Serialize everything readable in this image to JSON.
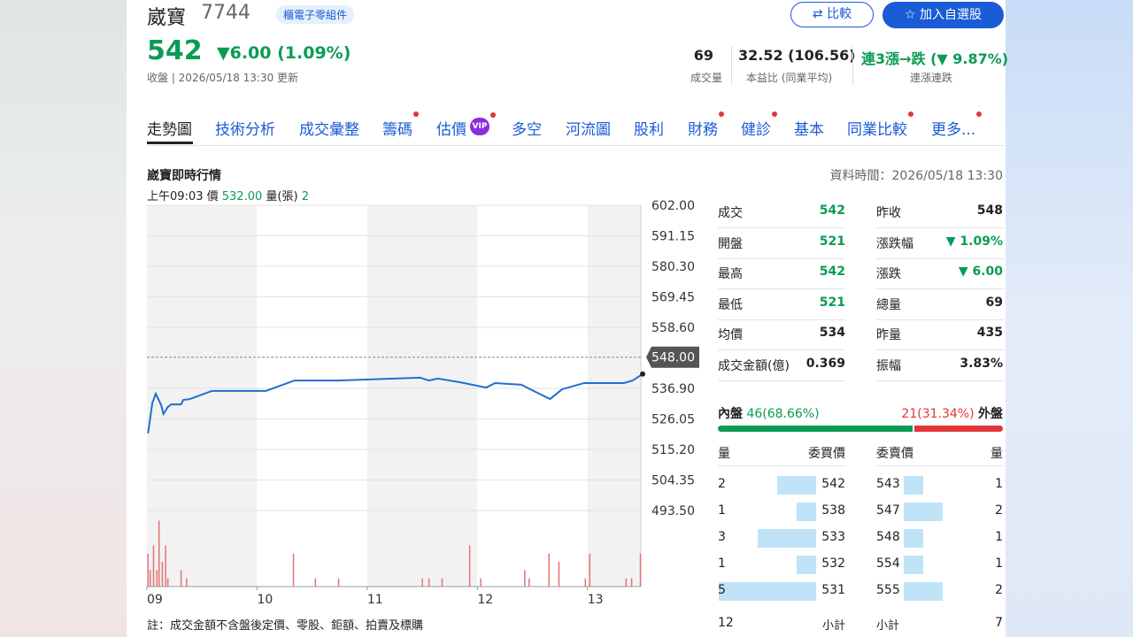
{
  "header": {
    "name": "崴寶",
    "code": "7744",
    "industry": "櫃電子零組件",
    "price": "542",
    "change": "▼6.00 (1.09%)",
    "updated": "收盤 | 2026/05/18 13:30 更新",
    "compare": "比較",
    "watchlist": "加入自選股",
    "stats": [
      {
        "value": "69",
        "label": "成交量"
      },
      {
        "value": "32.52 (106.56)",
        "label": "本益比 (同業平均)"
      },
      {
        "value": "連3漲→跌 (▼ 9.87%)",
        "label": "連漲連跌"
      }
    ]
  },
  "tabs": [
    "走勢圖",
    "技術分析",
    "成交彙整",
    "籌碼",
    "估價",
    "多空",
    "河流圖",
    "股利",
    "財務",
    "健診",
    "基本",
    "同業比較",
    "更多..."
  ],
  "vip": "VIP",
  "section": {
    "title": "崴寶即時行情",
    "time": "資料時間：2026/05/18 13:30"
  },
  "hover": {
    "time": "上午09:03",
    "price_label": "價",
    "price": "532.00",
    "volume_label": "量(張)",
    "volume": "2"
  },
  "chart_data": {
    "type": "line",
    "xlim": [
      9,
      13.5
    ],
    "xticks": [
      {
        "value": 9,
        "label": "09"
      },
      {
        "value": 10,
        "label": "10"
      },
      {
        "value": 11,
        "label": "11"
      },
      {
        "value": 12,
        "label": "12"
      },
      {
        "value": 13,
        "label": "13"
      }
    ],
    "ylim": [
      493.5,
      602
    ],
    "yticks": [
      {
        "value": 602,
        "label": "602.00"
      },
      {
        "value": 591.15,
        "label": "591.15"
      },
      {
        "value": 580.3,
        "label": "580.30"
      },
      {
        "value": 569.45,
        "label": "569.45"
      },
      {
        "value": 558.6,
        "label": "558.60"
      },
      {
        "value": 536.9,
        "label": "536.90"
      },
      {
        "value": 526.05,
        "label": "526.05"
      },
      {
        "value": 515.2,
        "label": "515.20"
      },
      {
        "value": 504.35,
        "label": "504.35"
      },
      {
        "value": 493.5,
        "label": "493.50"
      }
    ],
    "prev_close": {
      "value": 548,
      "label": "548.00"
    },
    "price": {
      "color": "#1f6fd0",
      "x": [
        9.01,
        9.05,
        9.06,
        9.08,
        9.1,
        9.13,
        9.15,
        9.19,
        9.22,
        9.31,
        9.33,
        9.39,
        9.59,
        10.08,
        10.34,
        10.72,
        11.48,
        11.56,
        11.64,
        11.84,
        12.08,
        12.16,
        12.4,
        12.48,
        12.66,
        12.77,
        12.97,
        13.33,
        13.41,
        13.5
      ],
      "values": [
        520.9,
        532,
        532.8,
        535,
        533.4,
        530.9,
        527.8,
        530.3,
        531.2,
        531.2,
        532.8,
        533.1,
        536,
        536,
        539.7,
        539.7,
        540.7,
        539.7,
        540.4,
        539.1,
        537.2,
        538.8,
        538.2,
        536.6,
        533.1,
        536.6,
        538.8,
        538.8,
        539.7,
        542
      ]
    },
    "volume": {
      "color": "#e57373",
      "x": [
        9.01,
        9.03,
        9.06,
        9.09,
        9.11,
        9.14,
        9.17,
        9.19,
        9.31,
        9.36,
        10.33,
        10.53,
        10.74,
        11.5,
        11.56,
        11.68,
        11.93,
        12.03,
        12.43,
        12.47,
        12.65,
        12.74,
        12.98,
        13.02,
        13.35,
        13.4,
        13.48
      ],
      "values": [
        4,
        2,
        5,
        2,
        8,
        3,
        5,
        1,
        2,
        1,
        4,
        1,
        1,
        1,
        1,
        1,
        5,
        1,
        2,
        1,
        4,
        3,
        1,
        4,
        1,
        1,
        4
      ]
    }
  },
  "quote": {
    "rows": [
      [
        "成交",
        "542",
        "昨收",
        "548"
      ],
      [
        "開盤",
        "521",
        "漲跌幅",
        "▼ 1.09%"
      ],
      [
        "最高",
        "542",
        "漲跌",
        "▼ 6.00"
      ],
      [
        "最低",
        "521",
        "總量",
        "69"
      ],
      [
        "均價",
        "534",
        "昨量",
        "435"
      ],
      [
        "成交金額(億)",
        "0.369",
        "振幅",
        "3.83%"
      ]
    ]
  },
  "flow": {
    "inner_label": "內盤",
    "inner": {
      "value": 68.66,
      "label": "46(68.66%)"
    },
    "outer": {
      "value": 31.34,
      "label": "21(31.34%)"
    },
    "outer_label": "外盤"
  },
  "order_book": {
    "headers": [
      "量",
      "委買價",
      "委賣價",
      "量"
    ],
    "bids": [
      {
        "volume": 2,
        "price": 542
      },
      {
        "volume": 1,
        "price": 538
      },
      {
        "volume": 3,
        "price": 533
      },
      {
        "volume": 1,
        "price": 532
      },
      {
        "volume": 5,
        "price": 531
      }
    ],
    "asks": [
      {
        "price": 543,
        "volume": 1
      },
      {
        "price": 547,
        "volume": 2
      },
      {
        "price": 548,
        "volume": 1
      },
      {
        "price": 554,
        "volume": 1
      },
      {
        "price": 555,
        "volume": 2
      }
    ],
    "bid_total": 12,
    "bid_total_label": "小計",
    "ask_total_label": "小計",
    "ask_total": 7
  },
  "note": "註：成交金額不含盤後定價、零股、鉅額、拍賣及標購"
}
